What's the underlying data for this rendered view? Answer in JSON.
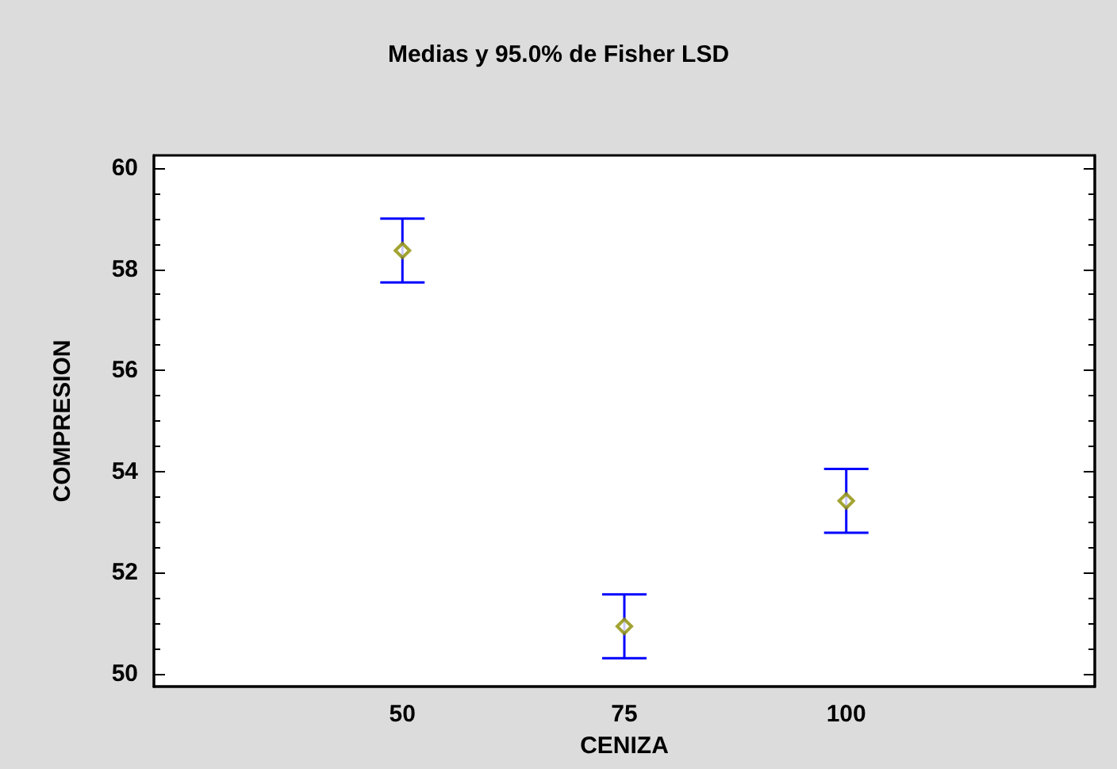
{
  "chart_data": {
    "type": "scatter",
    "title": "Medias y 95.0% de Fisher LSD",
    "xlabel": "CENIZA",
    "ylabel": "COMPRESION",
    "x": [
      50,
      75,
      100
    ],
    "series": [
      {
        "color": "#8c8c00",
        "values": [
          58.37,
          50.94,
          53.42
        ],
        "errors": [
          0.63,
          0.63,
          0.63
        ]
      }
    ],
    "xlim": [
      22,
      128
    ],
    "xticks": [
      50,
      75,
      100
    ],
    "ylim": [
      49.75,
      60.25
    ],
    "yticks": [
      50,
      52,
      54,
      56,
      58,
      60
    ],
    "marker": "diamond"
  }
}
